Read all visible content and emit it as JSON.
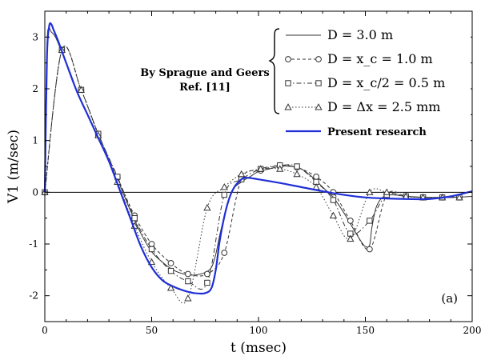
{
  "chart_data": {
    "type": "line",
    "xlabel": "t (msec)",
    "ylabel": "V1 (m/sec)",
    "xlim": [
      0,
      200
    ],
    "ylim": [
      -2.5,
      3.5
    ],
    "xticks": [
      "0",
      "50",
      "100",
      "150",
      "200"
    ],
    "yticks": [
      "-2",
      "-1",
      "0",
      "1",
      "2",
      "3"
    ],
    "annotation": "By Sprague and Geers\nRef. [11]",
    "panel_label": "(a)",
    "series": [
      {
        "name": "D = 3.0 m",
        "style": "solid-thin",
        "color": "#333333",
        "marker": "none",
        "x": [
          0,
          1,
          2,
          3,
          5,
          8,
          12,
          16,
          20,
          25,
          30,
          35,
          40,
          45,
          50,
          55,
          60,
          65,
          70,
          75,
          78,
          80,
          82,
          85,
          88,
          92,
          96,
          100,
          105,
          110,
          115,
          120,
          125,
          130,
          135,
          140,
          145,
          148,
          150,
          152,
          153,
          155,
          158,
          162,
          170,
          180,
          190,
          200
        ],
        "y": [
          0,
          2.8,
          3.15,
          3.1,
          3.0,
          2.7,
          2.3,
          1.85,
          1.5,
          1.05,
          0.6,
          0.15,
          -0.35,
          -0.8,
          -1.15,
          -1.35,
          -1.5,
          -1.58,
          -1.6,
          -1.55,
          -1.45,
          -1.2,
          -0.8,
          -0.3,
          0.05,
          0.2,
          0.3,
          0.4,
          0.45,
          0.5,
          0.5,
          0.45,
          0.3,
          0.1,
          -0.1,
          -0.4,
          -0.75,
          -0.95,
          -1.05,
          -1.02,
          -0.7,
          -0.3,
          -0.1,
          -0.05,
          -0.08,
          -0.1,
          -0.1,
          -0.08
        ]
      },
      {
        "name": "D = x_c = 1.0 m",
        "style": "dashed",
        "color": "#333333",
        "marker": "circle",
        "x": [
          0,
          8,
          17,
          25,
          34,
          42,
          50,
          59,
          67,
          76,
          84,
          92,
          101,
          110,
          118,
          127,
          135,
          143,
          152,
          160,
          169,
          177,
          186,
          194
        ],
        "y": [
          0,
          2.75,
          1.98,
          1.13,
          0.28,
          -0.45,
          -1.0,
          -1.37,
          -1.58,
          -1.58,
          -1.17,
          0.25,
          0.42,
          0.52,
          0.48,
          0.3,
          0.0,
          -0.55,
          -1.1,
          -0.05,
          -0.08,
          -0.1,
          -0.1,
          -0.1
        ]
      },
      {
        "name": "D = x_c/2 = 0.5 m",
        "style": "dashdot",
        "color": "#333333",
        "marker": "square",
        "x": [
          0,
          8,
          17,
          25,
          34,
          42,
          50,
          59,
          67,
          76,
          84,
          92,
          101,
          110,
          118,
          127,
          135,
          143,
          152,
          160,
          169,
          177,
          186,
          194
        ],
        "y": [
          0,
          2.75,
          1.98,
          1.13,
          0.3,
          -0.5,
          -1.1,
          -1.52,
          -1.72,
          -1.75,
          -0.05,
          0.25,
          0.45,
          0.52,
          0.5,
          0.2,
          -0.15,
          -0.8,
          -0.55,
          -0.05,
          -0.08,
          -0.1,
          -0.1,
          -0.1
        ]
      },
      {
        "name": "D = Δx = 2.5 mm",
        "style": "dotted",
        "color": "#333333",
        "marker": "triangle",
        "x": [
          0,
          8,
          17,
          25,
          34,
          42,
          50,
          59,
          67,
          76,
          84,
          92,
          101,
          110,
          118,
          127,
          135,
          143,
          152,
          160,
          169,
          177,
          186,
          194
        ],
        "y": [
          0,
          2.75,
          1.98,
          1.1,
          0.2,
          -0.65,
          -1.35,
          -1.85,
          -2.05,
          -0.3,
          0.1,
          0.35,
          0.45,
          0.45,
          0.35,
          0.1,
          -0.45,
          -0.9,
          0.0,
          0.0,
          -0.08,
          -0.1,
          -0.1,
          -0.1
        ]
      },
      {
        "name": "Present research",
        "style": "solid-thick",
        "color": "#1f2fd6",
        "marker": "none",
        "x": [
          0,
          1,
          2,
          3,
          4,
          6,
          10,
          15,
          20,
          25,
          30,
          35,
          40,
          45,
          50,
          55,
          60,
          65,
          70,
          75,
          78,
          80,
          82,
          85,
          88,
          92,
          95,
          100,
          110,
          120,
          130,
          140,
          150,
          160,
          170,
          180,
          190,
          200
        ],
        "y": [
          0,
          2.6,
          3.2,
          3.25,
          3.15,
          2.95,
          2.5,
          1.95,
          1.5,
          1.05,
          0.6,
          0.05,
          -0.5,
          -1.05,
          -1.45,
          -1.7,
          -1.82,
          -1.9,
          -1.95,
          -1.95,
          -1.85,
          -1.5,
          -0.9,
          -0.3,
          0.05,
          0.25,
          0.28,
          0.25,
          0.18,
          0.1,
          0.02,
          -0.05,
          -0.1,
          -0.12,
          -0.13,
          -0.13,
          -0.08,
          0.02
        ]
      }
    ],
    "legend": {
      "placement": "top-right",
      "entries": [
        {
          "label": "D = 3.0 m",
          "series": 0
        },
        {
          "label": "D = x_c = 1.0 m",
          "series": 1
        },
        {
          "label": "D = x_c/2 = 0.5 m",
          "series": 2
        },
        {
          "label": "D = Δx = 2.5 mm",
          "series": 3
        },
        {
          "label": "Present research",
          "series": 4
        }
      ]
    },
    "zero_line": true
  }
}
